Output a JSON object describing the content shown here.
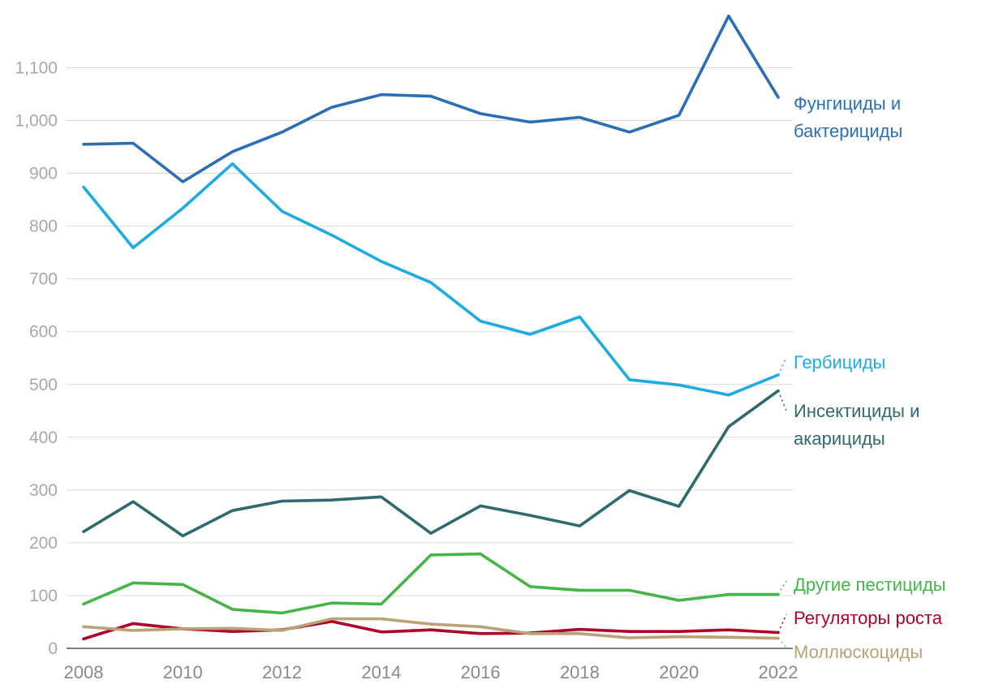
{
  "chart_data": {
    "type": "line",
    "title": "",
    "xlabel": "",
    "ylabel": "",
    "x": [
      2008,
      2009,
      2010,
      2011,
      2012,
      2013,
      2014,
      2015,
      2016,
      2017,
      2018,
      2019,
      2020,
      2021,
      2022
    ],
    "x_tick_labels": [
      "2008",
      "2010",
      "2012",
      "2014",
      "2016",
      "2018",
      "2020",
      "2022"
    ],
    "x_tick_values": [
      2008,
      2010,
      2012,
      2014,
      2016,
      2018,
      2020,
      2022
    ],
    "y_tick_labels": [
      "0",
      "100",
      "200",
      "300",
      "400",
      "500",
      "600",
      "700",
      "800",
      "900",
      "1,000",
      "1,100"
    ],
    "y_tick_values": [
      0,
      100,
      200,
      300,
      400,
      500,
      600,
      700,
      800,
      900,
      1000,
      1100
    ],
    "ylim": [
      0,
      1200
    ],
    "xlim": [
      2008,
      2022
    ],
    "grid": true,
    "legend": "right, direct labels at line ends",
    "series": [
      {
        "name": "Фунгициды и бактерициды",
        "label_lines": [
          "Фунгициды и",
          "бактерициды"
        ],
        "color": "#2a6fb6",
        "values": [
          955,
          957,
          884,
          941,
          978,
          1025,
          1049,
          1046,
          1013,
          997,
          1006,
          978,
          1010,
          1198,
          1044
        ]
      },
      {
        "name": "Гербициды",
        "label_lines": [
          "Гербициды"
        ],
        "color": "#1eabe3",
        "values": [
          874,
          759,
          834,
          918,
          828,
          783,
          733,
          693,
          620,
          595,
          628,
          509,
          499,
          480,
          518
        ]
      },
      {
        "name": "Инсектициды и акарициды",
        "label_lines": [
          "Инсектициды и",
          "акарициды"
        ],
        "color": "#2e6a6e",
        "values": [
          221,
          278,
          213,
          261,
          279,
          281,
          287,
          218,
          270,
          252,
          232,
          299,
          269,
          420,
          488
        ]
      },
      {
        "name": "Другие пестициды",
        "label_lines": [
          "Другие пестициды"
        ],
        "color": "#46b548",
        "values": [
          84,
          124,
          121,
          74,
          67,
          86,
          84,
          177,
          179,
          117,
          110,
          110,
          91,
          102,
          102
        ]
      },
      {
        "name": "Регуляторы роста",
        "label_lines": [
          "Регуляторы роста"
        ],
        "color": "#b0002a",
        "values": [
          18,
          47,
          37,
          32,
          35,
          51,
          31,
          35,
          28,
          29,
          36,
          32,
          32,
          35,
          30
        ]
      },
      {
        "name": "Моллюскоциды",
        "label_lines": [
          "Моллюскоциды"
        ],
        "color": "#b9a275",
        "values": [
          41,
          34,
          37,
          38,
          34,
          56,
          56,
          46,
          41,
          28,
          28,
          20,
          22,
          21,
          19
        ]
      }
    ]
  }
}
